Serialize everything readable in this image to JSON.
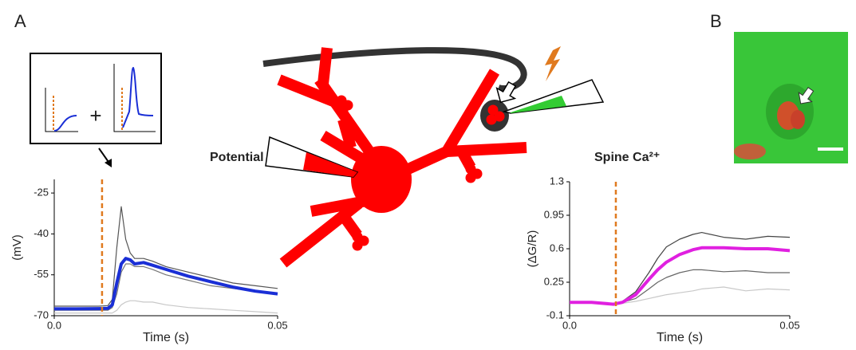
{
  "panel_labels": [
    "A",
    "B"
  ],
  "inset_symbol": "+",
  "chart_data": [
    {
      "type": "line",
      "title": "Potential",
      "y_label": "(mV)",
      "x_label": "Time (s)",
      "xlim": [
        0,
        0.05
      ],
      "xticks": [
        {
          "value": 0,
          "label": "0.0"
        },
        0.05
      ],
      "ylim": [
        -70,
        -20
      ],
      "yticks": [
        -25,
        -40,
        -55,
        -70
      ],
      "stimulus_time": 0.0107,
      "stimulus_color": "#e07a1f",
      "x": [
        0,
        0.005,
        0.01,
        0.012,
        0.013,
        0.014,
        0.015,
        0.016,
        0.017,
        0.018,
        0.02,
        0.022,
        0.025,
        0.03,
        0.035,
        0.04,
        0.045,
        0.05
      ],
      "series": [
        {
          "color": "#555555",
          "values": [
            -66.5,
            -66.5,
            -66.5,
            -66.3,
            -64,
            -45,
            -30,
            -42,
            -47,
            -49,
            -49,
            -50,
            -52,
            -54,
            -56,
            -58,
            -59,
            -60
          ]
        },
        {
          "color": "#777777",
          "values": [
            -68,
            -68,
            -68,
            -68,
            -67,
            -62,
            -54,
            -51,
            -51,
            -52,
            -52,
            -53,
            -55,
            -57,
            -59,
            -60,
            -61,
            -62
          ]
        },
        {
          "color": "#c8c8c8",
          "values": [
            -69,
            -69,
            -69,
            -69,
            -69,
            -68,
            -66,
            -65,
            -64.5,
            -64.5,
            -65,
            -65,
            -66,
            -67,
            -67.5,
            -68,
            -68.5,
            -69
          ]
        },
        {
          "color": "#1a2fd6",
          "values": [
            -67.5,
            -67.5,
            -67.4,
            -67.3,
            -66,
            -58,
            -51,
            -49,
            -49.5,
            -51,
            -50.5,
            -51.5,
            -53,
            -55.5,
            -57.5,
            -59.5,
            -61,
            -62
          ]
        }
      ]
    },
    {
      "type": "line",
      "title": "Spine Ca²⁺",
      "y_label": "(ΔG/R)",
      "x_label": "Time (s)",
      "xlim": [
        0,
        0.05
      ],
      "xticks": [
        {
          "value": 0,
          "label": "0.0"
        },
        0.05
      ],
      "ylim": [
        -0.1,
        1.3
      ],
      "yticks": [
        1.3,
        0.95,
        0.6,
        0.25,
        -0.1
      ],
      "stimulus_time": 0.0105,
      "stimulus_color": "#e07a1f",
      "x": [
        0,
        0.005,
        0.01,
        0.012,
        0.015,
        0.018,
        0.02,
        0.022,
        0.025,
        0.028,
        0.03,
        0.035,
        0.04,
        0.045,
        0.05
      ],
      "series": [
        {
          "color": "#444444",
          "values": [
            0.04,
            0.04,
            0.03,
            0.05,
            0.15,
            0.35,
            0.5,
            0.62,
            0.7,
            0.75,
            0.77,
            0.72,
            0.7,
            0.73,
            0.72
          ]
        },
        {
          "color": "#666666",
          "values": [
            0.04,
            0.04,
            0.03,
            0.04,
            0.08,
            0.18,
            0.25,
            0.3,
            0.35,
            0.38,
            0.38,
            0.36,
            0.37,
            0.35,
            0.35
          ]
        },
        {
          "color": "#c8c8c8",
          "values": [
            0.03,
            0.03,
            0.03,
            0.03,
            0.05,
            0.08,
            0.1,
            0.12,
            0.14,
            0.16,
            0.18,
            0.2,
            0.16,
            0.18,
            0.17
          ]
        },
        {
          "color": "#e020e0",
          "values": [
            0.04,
            0.04,
            0.02,
            0.04,
            0.12,
            0.28,
            0.38,
            0.46,
            0.54,
            0.59,
            0.61,
            0.61,
            0.6,
            0.6,
            0.58
          ]
        }
      ]
    }
  ]
}
